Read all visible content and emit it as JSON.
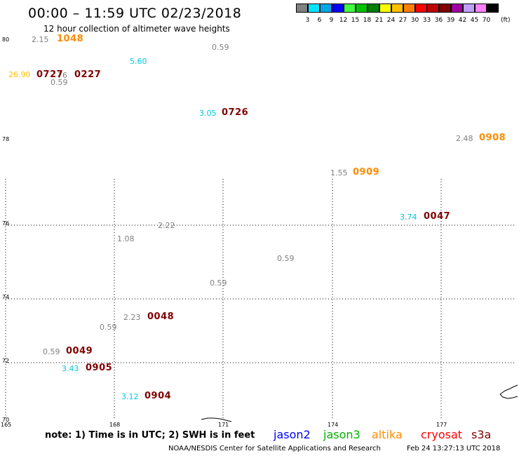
{
  "header": {
    "title": "00:00 – 11:59 UTC 02/23/2018",
    "subtitle": "12 hour collection of altimeter wave heights"
  },
  "legend": {
    "unit": "(ft)",
    "bins": [
      {
        "label": "3",
        "color": "#808080"
      },
      {
        "label": "6",
        "color": "#00e5ff"
      },
      {
        "label": "9",
        "color": "#00a8e8"
      },
      {
        "label": "12",
        "color": "#0000ff"
      },
      {
        "label": "15",
        "color": "#40ff40"
      },
      {
        "label": "18",
        "color": "#00c000"
      },
      {
        "label": "21",
        "color": "#008000"
      },
      {
        "label": "24",
        "color": "#ffff00"
      },
      {
        "label": "27",
        "color": "#ffc000"
      },
      {
        "label": "30",
        "color": "#ff8000"
      },
      {
        "label": "33",
        "color": "#ff0000"
      },
      {
        "label": "36",
        "color": "#c00000"
      },
      {
        "label": "39",
        "color": "#800000"
      },
      {
        "label": "42",
        "color": "#a000a0"
      },
      {
        "label": "45",
        "color": "#c0a0ff"
      },
      {
        "label": "70",
        "color": "#ff80ff"
      },
      {
        "label": "",
        "color": "#000000"
      }
    ]
  },
  "axes": {
    "lat_labels": [
      "80",
      "78",
      "76",
      "74",
      "72",
      "70"
    ],
    "lon_labels": [
      "165",
      "168",
      "171",
      "174",
      "177"
    ]
  },
  "observations": {
    "wave_heights": [
      {
        "value": "2.15",
        "color": "#808080"
      },
      {
        "value": "0.59",
        "color": "#808080"
      },
      {
        "value": "5.60",
        "color": "#00c8e0"
      },
      {
        "value": "26.90",
        "color": "#ffc000"
      },
      {
        "value": "76",
        "color": "#808080"
      },
      {
        "value": "0.59",
        "color": "#808080"
      },
      {
        "value": "3.05",
        "color": "#00c8e0"
      },
      {
        "value": "2.48",
        "color": "#808080"
      },
      {
        "value": "1.55",
        "color": "#808080"
      },
      {
        "value": "3.74",
        "color": "#00c8e0"
      },
      {
        "value": "2.22",
        "color": "#808080"
      },
      {
        "value": "1.08",
        "color": "#808080"
      },
      {
        "value": "0.59",
        "color": "#808080"
      },
      {
        "value": "0.59",
        "color": "#808080"
      },
      {
        "value": "2.23",
        "color": "#808080"
      },
      {
        "value": "0.59",
        "color": "#808080"
      },
      {
        "value": "0.59",
        "color": "#808080"
      },
      {
        "value": "3.43",
        "color": "#00c8e0"
      },
      {
        "value": "3.12",
        "color": "#00c8e0"
      }
    ],
    "pass_times": [
      {
        "value": "1048",
        "color": "#ff8c00"
      },
      {
        "value": "0727",
        "color": "#800000"
      },
      {
        "value": "0227",
        "color": "#800000"
      },
      {
        "value": "0726",
        "color": "#800000"
      },
      {
        "value": "0908",
        "color": "#ff8c00"
      },
      {
        "value": "0909",
        "color": "#ff8c00"
      },
      {
        "value": "0047",
        "color": "#800000"
      },
      {
        "value": "0048",
        "color": "#800000"
      },
      {
        "value": "0049",
        "color": "#800000"
      },
      {
        "value": "0905",
        "color": "#800000"
      },
      {
        "value": "0904",
        "color": "#800000"
      }
    ]
  },
  "footer": {
    "note": "note: 1) Time is in UTC; 2) SWH is in feet",
    "satellites": [
      {
        "name": "jason2",
        "color": "#0000ff"
      },
      {
        "name": "jason3",
        "color": "#00b000"
      },
      {
        "name": "altika",
        "color": "#ff8c00"
      },
      {
        "name": "cryosat",
        "color": "#ff0000"
      },
      {
        "name": "s3a",
        "color": "#800000"
      }
    ],
    "credit": "NOAA/NESDIS Center for Satellite Applications and Research",
    "timestamp": "Feb 24 13:27:13 UTC 2018"
  }
}
